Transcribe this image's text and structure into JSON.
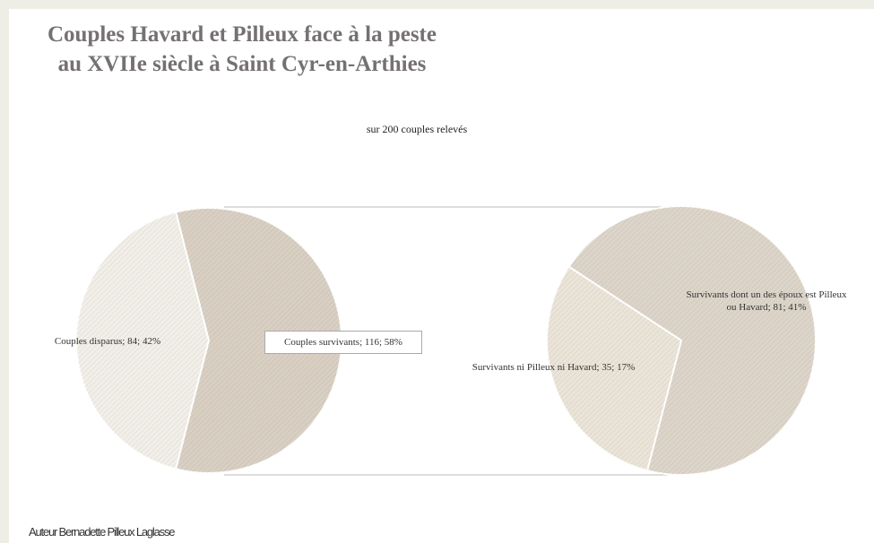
{
  "chart_data": {
    "type": "pie-of-pie",
    "title": "Couples Havard et Pilleux face à la peste\nau XVIIe siècle à Saint Cyr-en-Arthies",
    "subtitle": "sur 200 couples relevés",
    "categories": [
      "Couples disparus",
      "Couples survivants"
    ],
    "values": [
      84,
      116
    ],
    "value_labels": [
      "Couples disparus; 84; 42%",
      "Couples survivants; 116; 58%"
    ],
    "colors": [
      "#f2eee8",
      "#d9d0c3"
    ],
    "secondary": {
      "categories": [
        "Survivants dont un des époux est Pilleux ou Havard",
        "Survivants ni Pilleux ni Havard"
      ],
      "values": [
        81,
        35
      ],
      "value_labels": [
        "Survivants dont un des époux est Pilleux ou Havard; 81; 41%",
        "Survivants ni Pilleux ni Havard; 35; 17%"
      ],
      "colors": [
        "#ddd5c9",
        "#ebe4d8"
      ]
    },
    "footer": "Auteur Bernadette Pilleux Laglasse"
  }
}
